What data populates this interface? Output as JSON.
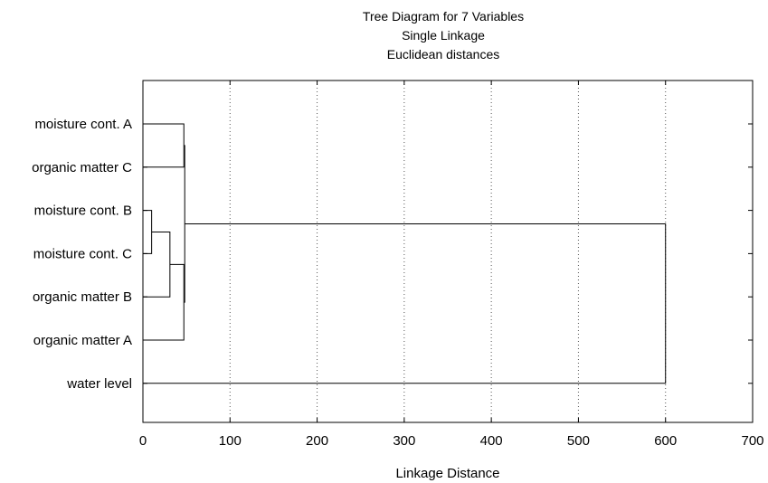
{
  "chart_data": {
    "type": "dendrogram",
    "title": "Tree Diagram for 7 Variables",
    "subtitle_lines": [
      "Single Linkage",
      "Euclidean distances"
    ],
    "xlabel": "Linkage Distance",
    "xlim": [
      0,
      700
    ],
    "xticks": [
      0,
      100,
      200,
      300,
      400,
      500,
      600,
      700
    ],
    "grid_vertical": true,
    "leaves": [
      "moisture cont. A",
      "organic matter C",
      "moisture cont. B",
      "moisture cont. C",
      "organic matter B",
      "organic matter A",
      "water level"
    ],
    "merges": [
      {
        "left": "moisture cont. B",
        "right": "moisture cont. C",
        "distance": 10
      },
      {
        "left": "cluster:1",
        "right": "organic matter B",
        "distance": 31
      },
      {
        "left": "moisture cont. A",
        "right": "organic matter C",
        "distance": 47
      },
      {
        "left": "cluster:2",
        "right": "organic matter A",
        "distance": 47
      },
      {
        "left": "cluster:3",
        "right": "cluster:4",
        "distance": 48
      },
      {
        "left": "cluster:5",
        "right": "water level",
        "distance": 600
      }
    ]
  }
}
